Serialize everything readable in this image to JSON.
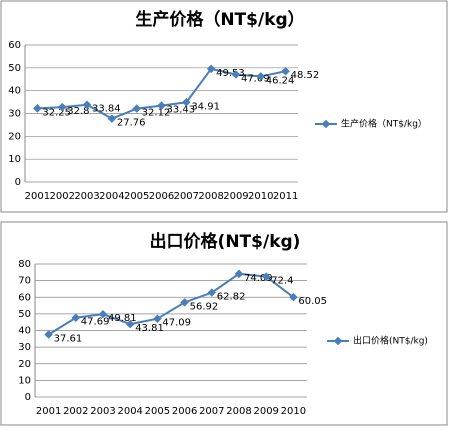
{
  "chart_data": [
    {
      "type": "line",
      "title": "生产价格（NT$/kg）",
      "categories": [
        "2001",
        "2002",
        "2003",
        "2004",
        "2005",
        "2006",
        "2007",
        "2008",
        "2009",
        "2010",
        "2011"
      ],
      "series": [
        {
          "name": "生产价格（NT$/kg）",
          "color": "#4a7ebb",
          "values": [
            32.25,
            32.8,
            33.84,
            27.76,
            32.12,
            33.43,
            34.91,
            49.53,
            47.09,
            46.24,
            48.52
          ]
        }
      ],
      "ylim": [
        0,
        60
      ],
      "yticks": [
        0,
        10,
        20,
        30,
        40,
        50,
        60
      ],
      "grid": true,
      "legend": "right"
    },
    {
      "type": "line",
      "title": "出口价格(NT$/kg)",
      "categories": [
        "2001",
        "2002",
        "2003",
        "2004",
        "2005",
        "2006",
        "2007",
        "2008",
        "2009",
        "2010"
      ],
      "series": [
        {
          "name": "出口价格(NT$/kg)",
          "color": "#4a7ebb",
          "values": [
            37.61,
            47.69,
            49.81,
            43.81,
            47.09,
            56.92,
            62.82,
            74.09,
            72.4,
            60.05
          ]
        }
      ],
      "ylim": [
        0,
        80
      ],
      "yticks": [
        0,
        10,
        20,
        30,
        40,
        50,
        60,
        70,
        80
      ],
      "grid": true,
      "legend": "right"
    }
  ]
}
